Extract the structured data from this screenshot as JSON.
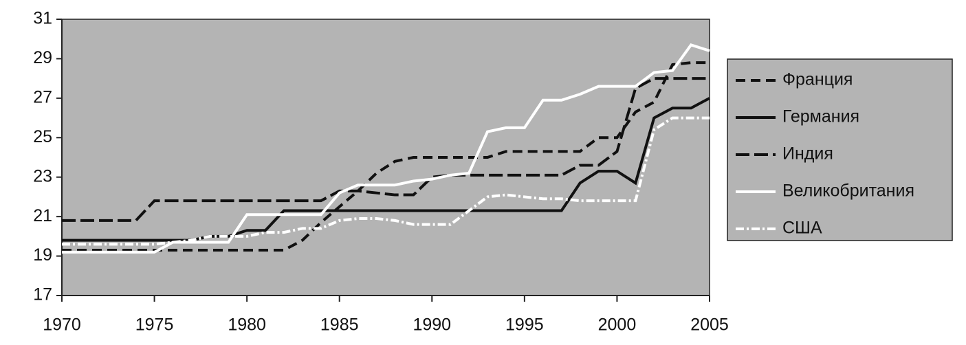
{
  "chart_data": {
    "type": "line",
    "x": [
      1970,
      1971,
      1972,
      1973,
      1974,
      1975,
      1976,
      1977,
      1978,
      1979,
      1980,
      1981,
      1982,
      1983,
      1984,
      1985,
      1986,
      1987,
      1988,
      1989,
      1990,
      1991,
      1992,
      1993,
      1994,
      1995,
      1996,
      1997,
      1998,
      1999,
      2000,
      2001,
      2002,
      2003,
      2004,
      2005
    ],
    "xlim": [
      1970,
      2005
    ],
    "xticks": [
      1970,
      1975,
      1980,
      1985,
      1990,
      1995,
      2000,
      2005
    ],
    "ylim": [
      17,
      31
    ],
    "yticks": [
      17,
      19,
      21,
      23,
      25,
      27,
      29,
      31
    ],
    "background": "#b4b4b4",
    "series": [
      {
        "name": "Франция",
        "color": "#111111",
        "dash": "14 8",
        "values": [
          19.3,
          19.3,
          19.3,
          19.3,
          19.3,
          19.3,
          19.3,
          19.3,
          19.3,
          19.3,
          19.3,
          19.3,
          19.3,
          19.8,
          20.7,
          21.5,
          22.3,
          23.2,
          23.8,
          24.0,
          24.0,
          24.0,
          24.0,
          24.0,
          24.3,
          24.3,
          24.3,
          24.3,
          24.3,
          25.0,
          25.0,
          26.3,
          26.8,
          28.7,
          28.8,
          28.8
        ]
      },
      {
        "name": "Германия",
        "color": "#111111",
        "dash": "none",
        "values": [
          19.8,
          19.8,
          19.8,
          19.8,
          19.8,
          19.8,
          19.8,
          19.8,
          20.0,
          20.0,
          20.3,
          20.3,
          21.3,
          21.3,
          21.3,
          21.3,
          21.3,
          21.3,
          21.3,
          21.3,
          21.3,
          21.3,
          21.3,
          21.3,
          21.3,
          21.3,
          21.3,
          21.3,
          22.7,
          23.3,
          23.3,
          22.7,
          26.0,
          26.5,
          26.5,
          27.0
        ]
      },
      {
        "name": "Индия",
        "color": "#111111",
        "dash": "20 7",
        "values": [
          20.8,
          20.8,
          20.8,
          20.8,
          20.8,
          21.8,
          21.8,
          21.8,
          21.8,
          21.8,
          21.8,
          21.8,
          21.8,
          21.8,
          21.8,
          22.3,
          22.3,
          22.2,
          22.1,
          22.1,
          23.0,
          23.1,
          23.1,
          23.1,
          23.1,
          23.1,
          23.1,
          23.1,
          23.6,
          23.6,
          24.3,
          27.5,
          28.0,
          28.0,
          28.0,
          28.0
        ]
      },
      {
        "name": "Великобритания",
        "color": "#ffffff",
        "dash": "none",
        "values": [
          19.2,
          19.2,
          19.2,
          19.2,
          19.2,
          19.2,
          19.7,
          19.7,
          19.7,
          19.7,
          21.1,
          21.1,
          21.1,
          21.1,
          21.1,
          22.2,
          22.6,
          22.6,
          22.6,
          22.8,
          22.9,
          23.1,
          23.2,
          25.3,
          25.5,
          25.5,
          26.9,
          26.9,
          27.2,
          27.6,
          27.6,
          27.6,
          28.3,
          28.4,
          29.7,
          29.4
        ]
      },
      {
        "name": "США",
        "color": "#ffffff",
        "dash": "12 4 3 4",
        "values": [
          19.6,
          19.6,
          19.6,
          19.6,
          19.6,
          19.6,
          19.7,
          19.8,
          20.0,
          20.0,
          20.0,
          20.2,
          20.2,
          20.4,
          20.4,
          20.8,
          20.9,
          20.9,
          20.8,
          20.6,
          20.6,
          20.6,
          21.3,
          22.0,
          22.1,
          22.0,
          21.9,
          21.9,
          21.8,
          21.8,
          21.8,
          21.8,
          25.4,
          26.0,
          26.0,
          26.0
        ]
      }
    ]
  }
}
